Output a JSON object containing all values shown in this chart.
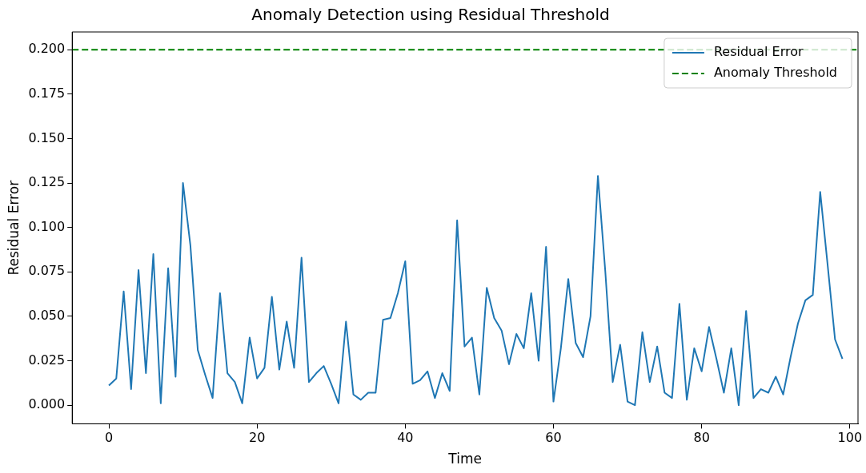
{
  "chart_data": {
    "type": "line",
    "title": "Anomaly Detection using Residual Threshold",
    "xlabel": "Time",
    "ylabel": "Residual Error",
    "x": [
      0,
      1,
      2,
      3,
      4,
      5,
      6,
      7,
      8,
      9,
      10,
      11,
      12,
      13,
      14,
      15,
      16,
      17,
      18,
      19,
      20,
      21,
      22,
      23,
      24,
      25,
      26,
      27,
      28,
      29,
      30,
      31,
      32,
      33,
      34,
      35,
      36,
      37,
      38,
      39,
      40,
      41,
      42,
      43,
      44,
      45,
      46,
      47,
      48,
      49,
      50,
      51,
      52,
      53,
      54,
      55,
      56,
      57,
      58,
      59,
      60,
      61,
      62,
      63,
      64,
      65,
      66,
      67,
      68,
      69,
      70,
      71,
      72,
      73,
      74,
      75,
      76,
      77,
      78,
      79,
      80,
      81,
      82,
      83,
      84,
      85,
      86,
      87,
      88,
      89,
      90,
      91,
      92,
      93,
      94,
      95,
      96,
      97,
      98,
      99
    ],
    "series": [
      {
        "name": "Residual Error",
        "color": "#1f77b4",
        "values": [
          0.011,
          0.015,
          0.064,
          0.009,
          0.076,
          0.018,
          0.085,
          0.001,
          0.077,
          0.016,
          0.125,
          0.09,
          0.031,
          0.017,
          0.004,
          0.063,
          0.018,
          0.013,
          0.001,
          0.038,
          0.015,
          0.021,
          0.061,
          0.02,
          0.047,
          0.021,
          0.083,
          0.013,
          0.018,
          0.022,
          0.012,
          0.001,
          0.047,
          0.006,
          0.003,
          0.007,
          0.007,
          0.048,
          0.049,
          0.063,
          0.081,
          0.012,
          0.014,
          0.019,
          0.004,
          0.018,
          0.008,
          0.104,
          0.033,
          0.038,
          0.006,
          0.066,
          0.049,
          0.042,
          0.023,
          0.04,
          0.032,
          0.063,
          0.025,
          0.089,
          0.002,
          0.032,
          0.071,
          0.035,
          0.027,
          0.05,
          0.129,
          0.075,
          0.013,
          0.034,
          0.002,
          0.0,
          0.041,
          0.013,
          0.033,
          0.007,
          0.004,
          0.057,
          0.003,
          0.032,
          0.019,
          0.044,
          0.026,
          0.007,
          0.032,
          0.0,
          0.053,
          0.004,
          0.009,
          0.007,
          0.016,
          0.006,
          0.027,
          0.046,
          0.059,
          0.062,
          0.12,
          0.079,
          0.037,
          0.026
        ]
      }
    ],
    "ref_lines": [
      {
        "axis": "y",
        "value": 0.2,
        "label": "Anomaly Threshold",
        "color": "#008000",
        "line_style": "dashed"
      }
    ],
    "xlim": [
      -4.95,
      101.1
    ],
    "ylim": [
      -0.0105,
      0.21
    ],
    "xticks": [
      0,
      20,
      40,
      60,
      80,
      100
    ],
    "yticks": [
      {
        "value": 0,
        "label": "0.000"
      },
      {
        "value": 0.025,
        "label": "0.025"
      },
      {
        "value": 0.05,
        "label": "0.050"
      },
      {
        "value": 0.075,
        "label": "0.075"
      },
      {
        "value": 0.1,
        "label": "0.100"
      },
      {
        "value": 0.125,
        "label": "0.125"
      },
      {
        "value": 0.15,
        "label": "0.150"
      },
      {
        "value": 0.175,
        "label": "0.175"
      },
      {
        "value": 0.2,
        "label": "0.200"
      }
    ],
    "legend": "top right",
    "grid": false,
    "marker": "none",
    "line_style": "solid"
  }
}
